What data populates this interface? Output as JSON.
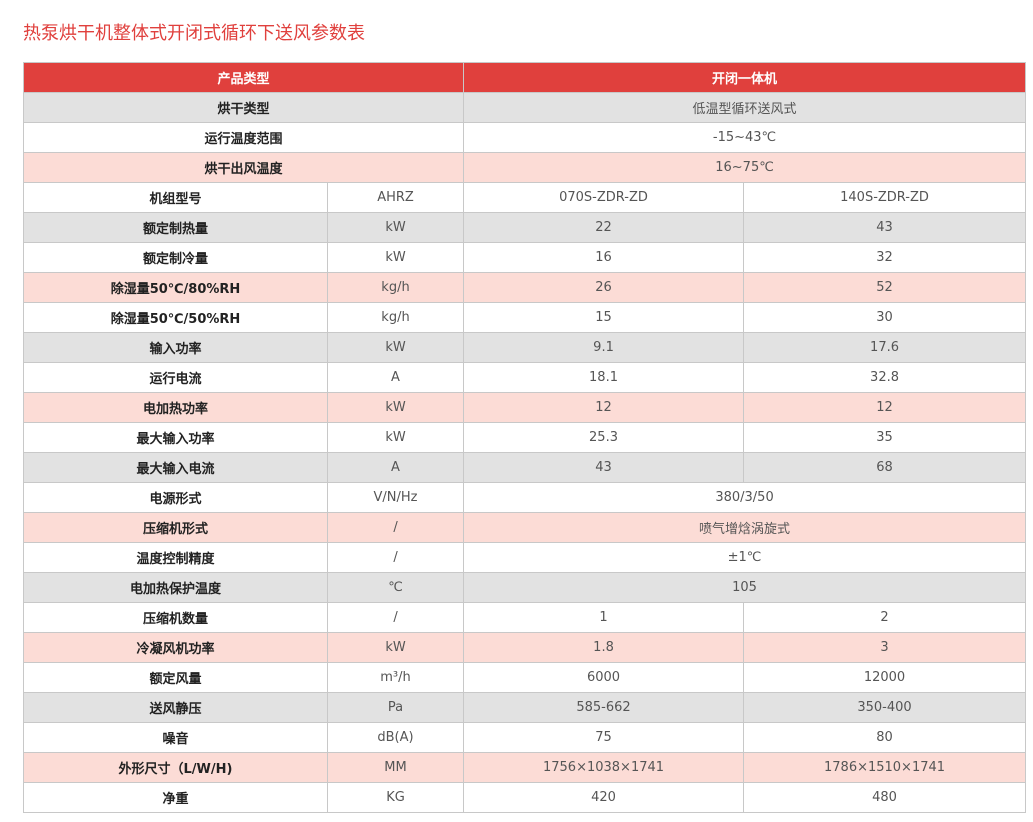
{
  "title": "热泵烘干机整体式开闭式循环下送风参数表",
  "table": {
    "header": [
      "产品类型",
      "开闭一体机"
    ],
    "rows": [
      [
        "烘干类型",
        "低温型循环送风式"
      ],
      [
        "运行温度范围",
        "-15~43℃"
      ],
      [
        "烘干出风温度",
        "16~75℃"
      ],
      [
        "机组型号",
        "AHRZ",
        "070S-ZDR-ZD",
        "140S-ZDR-ZD"
      ],
      [
        "额定制热量",
        "kW",
        "22",
        "43"
      ],
      [
        "额定制冷量",
        "kW",
        "16",
        "32"
      ],
      [
        "除湿量50℃/80%RH",
        "kg/h",
        "26",
        "52"
      ],
      [
        "除湿量50℃/50%RH",
        "kg/h",
        "15",
        "30"
      ],
      [
        "输入功率",
        "kW",
        "9.1",
        "17.6"
      ],
      [
        "运行电流",
        "A",
        "18.1",
        "32.8"
      ],
      [
        "电加热功率",
        "kW",
        "12",
        "12"
      ],
      [
        "最大输入功率",
        "kW",
        "25.3",
        "35"
      ],
      [
        "最大输入电流",
        "A",
        "43",
        "68"
      ],
      [
        "电源形式",
        "V/N/Hz",
        "380/3/50"
      ],
      [
        "压缩机形式",
        "/",
        "喷气增焓涡旋式"
      ],
      [
        "温度控制精度",
        "/",
        "±1℃"
      ],
      [
        "电加热保护温度",
        "℃",
        "105"
      ],
      [
        "压缩机数量",
        "/",
        "1",
        "2"
      ],
      [
        "冷凝风机功率",
        "kW",
        "1.8",
        "3"
      ],
      [
        "额定风量",
        "m³/h",
        "6000",
        "12000"
      ],
      [
        "送风静压",
        "Pa",
        "585-662",
        "350-400"
      ],
      [
        "噪音",
        "dB(A)",
        "75",
        "80"
      ],
      [
        "外形尺寸（L/W/H)",
        "MM",
        "1756×1038×1741",
        "1786×1510×1741"
      ],
      [
        "净重",
        "KG",
        "420",
        "480"
      ]
    ]
  }
}
